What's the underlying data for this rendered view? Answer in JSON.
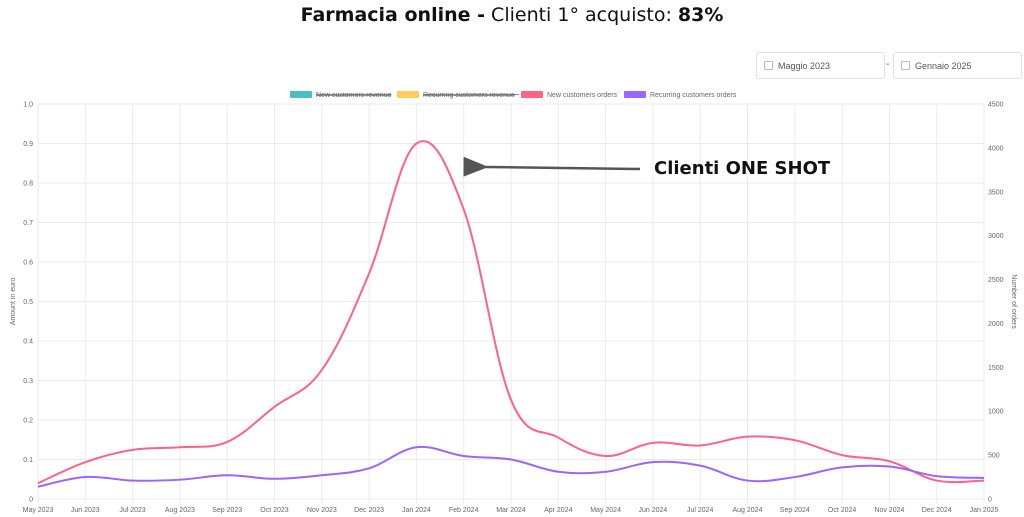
{
  "header": {
    "title_bold": "Farmacia online -",
    "title_regular": " Clienti 1° acquisto: ",
    "title_value": "83%"
  },
  "date_range": {
    "start": "Maggio 2023",
    "separator": "-",
    "end": "Gennaio 2025"
  },
  "colors": {
    "new_revenue": "#4bc0c0",
    "recurring_revenue": "#ffcd56",
    "new_orders": "#ff6384",
    "recurring_orders": "#9966ff",
    "grid": "#ebebeb",
    "annotation_arrow": "#555555"
  },
  "chart_data": {
    "type": "line",
    "categories": [
      "May 2023",
      "Jun 2023",
      "Jul 2023",
      "Aug 2023",
      "Sep 2023",
      "Oct 2023",
      "Nov 2023",
      "Dec 2023",
      "Jan 2024",
      "Feb 2024",
      "Mar 2024",
      "Apr 2024",
      "May 2024",
      "Jun 2024",
      "Jul 2024",
      "Aug 2024",
      "Sep 2024",
      "Oct 2024",
      "Nov 2024",
      "Dec 2024",
      "Jan 2025"
    ],
    "legend": [
      {
        "name": "New customers revenue",
        "hidden": true
      },
      {
        "name": "Recurring customers revenue",
        "hidden": true
      },
      {
        "name": "New customers orders",
        "hidden": false
      },
      {
        "name": "Recurring customers orders",
        "hidden": false
      }
    ],
    "series": [
      {
        "name": "New customers orders",
        "axis": "right",
        "values": [
          180,
          420,
          560,
          590,
          650,
          1050,
          1470,
          2570,
          4050,
          3300,
          1130,
          700,
          490,
          640,
          610,
          710,
          670,
          500,
          430,
          210,
          210
        ]
      },
      {
        "name": "Recurring customers orders",
        "axis": "right",
        "values": [
          140,
          250,
          210,
          220,
          270,
          230,
          270,
          350,
          590,
          490,
          450,
          310,
          310,
          420,
          380,
          210,
          250,
          360,
          370,
          260,
          240
        ]
      }
    ],
    "y_left": {
      "label": "Amount in euro",
      "min": 0,
      "max": 1,
      "ticks": [
        "0",
        "0.1",
        "0.2",
        "0.3",
        "0.4",
        "0.5",
        "0.6",
        "0.7",
        "0.8",
        "0.9",
        "1.0"
      ]
    },
    "y_right": {
      "label": "Number of orders",
      "min": 0,
      "max": 4500,
      "ticks": [
        "0",
        "500",
        "1000",
        "1500",
        "2000",
        "2500",
        "3000",
        "3500",
        "4000",
        "4500"
      ]
    },
    "grid": true,
    "legend_position": "top",
    "annotation": {
      "text": "Clienti ONE SHOT",
      "points_to": "Jan 2024"
    }
  }
}
